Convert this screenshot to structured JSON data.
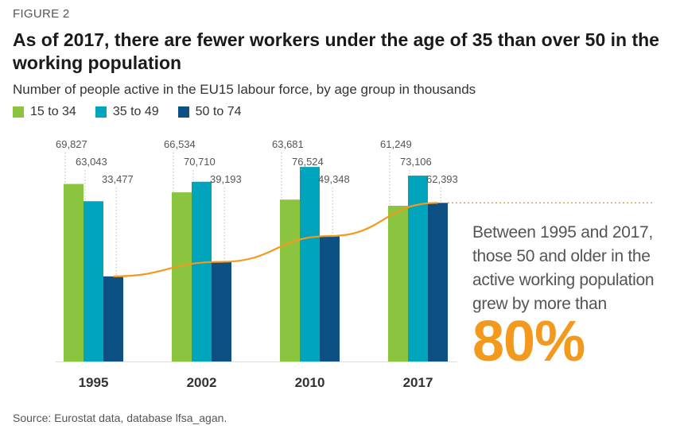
{
  "figure_label": "FIGURE 2",
  "title": "As of 2017, there are fewer workers under the age of 35 than over 50 in the working population",
  "subtitle": "Number of people active in the EU15 labour force, by age group in thousands",
  "annotation": {
    "lines": [
      "Between 1995 and 2017,",
      "those 50 and older in the",
      "active working population",
      "grew by more than"
    ],
    "highlight": "80%"
  },
  "source": "Source: Eurostat data, database lfsa_agan.",
  "colors": {
    "s1": "#8bc53f",
    "s2": "#00a4bd",
    "s3": "#0d5083",
    "trend": "#f39a1e",
    "label": "#555555",
    "leader": "#bbbbbb"
  },
  "chart_data": {
    "type": "bar",
    "categories": [
      "1995",
      "2002",
      "2010",
      "2017"
    ],
    "series": [
      {
        "name": "15 to 34",
        "values": [
          69827,
          66534,
          63681,
          61249
        ],
        "labels": [
          "69,827",
          "66,534",
          "63,681",
          "61,249"
        ]
      },
      {
        "name": "35 to 49",
        "values": [
          63043,
          70710,
          76524,
          73106
        ],
        "labels": [
          "63,043",
          "70,710",
          "76,524",
          "73,106"
        ]
      },
      {
        "name": "50 to 74",
        "values": [
          33477,
          39193,
          49348,
          62393
        ],
        "labels": [
          "33,477",
          "39,193",
          "49,348",
          "62,393"
        ]
      }
    ],
    "trend_series": "50 to 74",
    "reference_line_value": 62393,
    "ylim": [
      0,
      80000
    ],
    "grid": false,
    "legend_position": "top-left"
  }
}
